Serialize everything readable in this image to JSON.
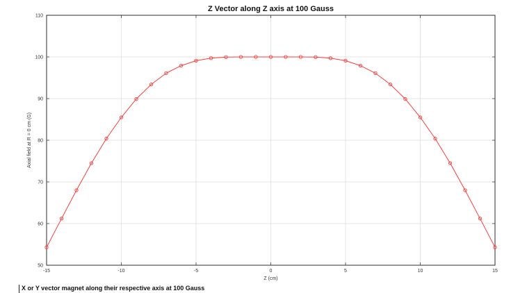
{
  "chart_data": {
    "type": "line",
    "title": "Z Vector along Z axis at 100 Gauss",
    "xlabel": "Z (cm)",
    "ylabel": "Axial field at R = 0 cm (G)",
    "xlim": [
      -15,
      15
    ],
    "ylim": [
      50,
      110
    ],
    "xticks": [
      -15,
      -10,
      -5,
      0,
      5,
      10,
      15
    ],
    "yticks": [
      50,
      60,
      70,
      80,
      90,
      100,
      110
    ],
    "grid": true,
    "series": [
      {
        "color": "#ff3b3b",
        "marker": "circle",
        "x": [
          -15,
          -14,
          -13,
          -12,
          -11,
          -10,
          -9,
          -8,
          -7,
          -6,
          -5,
          -4,
          -3,
          -2,
          -1,
          0,
          1,
          2,
          3,
          4,
          5,
          6,
          7,
          8,
          9,
          10,
          11,
          12,
          13,
          14,
          15
        ],
        "y": [
          54.3,
          61.2,
          68.0,
          74.5,
          80.4,
          85.5,
          89.9,
          93.4,
          96.1,
          97.9,
          99.1,
          99.7,
          99.95,
          100.0,
          100.0,
          100.0,
          100.0,
          100.0,
          99.95,
          99.7,
          99.1,
          97.9,
          96.1,
          93.4,
          89.9,
          85.5,
          80.4,
          74.5,
          68.0,
          61.2,
          54.3
        ]
      }
    ]
  },
  "caption": "X or Y vector magnet along their respective axis at 100 Gauss"
}
